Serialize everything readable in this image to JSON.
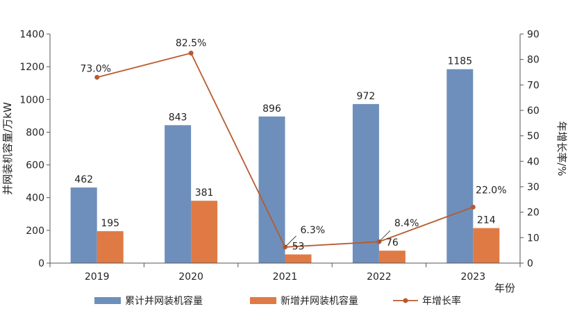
{
  "chart_data": {
    "type": "bar",
    "categories": [
      "2019",
      "2020",
      "2021",
      "2022",
      "2023"
    ],
    "series": [
      {
        "name": "累计并网装机容量",
        "type": "bar",
        "axis": "left",
        "color": "#6e8fbb",
        "values": [
          462,
          843,
          896,
          972,
          1185
        ]
      },
      {
        "name": "新增并网装机容量",
        "type": "bar",
        "axis": "left",
        "color": "#e07a45",
        "values": [
          195,
          381,
          53,
          76,
          214
        ]
      },
      {
        "name": "年增长率",
        "type": "line",
        "axis": "right",
        "color": "#b85a2e",
        "values": [
          73.0,
          82.5,
          6.3,
          8.4,
          22.0
        ],
        "labels": [
          "73.0%",
          "82.5%",
          "6.3%",
          "8.4%",
          "22.0%"
        ]
      }
    ],
    "xlabel": "年份",
    "ylabel": "并网装机容量/万kW",
    "y2label": "年增长率/%",
    "ylim": [
      0,
      1400
    ],
    "yticks": [
      0,
      200,
      400,
      600,
      800,
      1000,
      1200,
      1400
    ],
    "y2lim": [
      0,
      90
    ],
    "y2ticks": [
      0,
      10,
      20,
      30,
      40,
      50,
      60,
      70,
      80,
      90
    ],
    "grid": false,
    "legend": "bottom"
  }
}
